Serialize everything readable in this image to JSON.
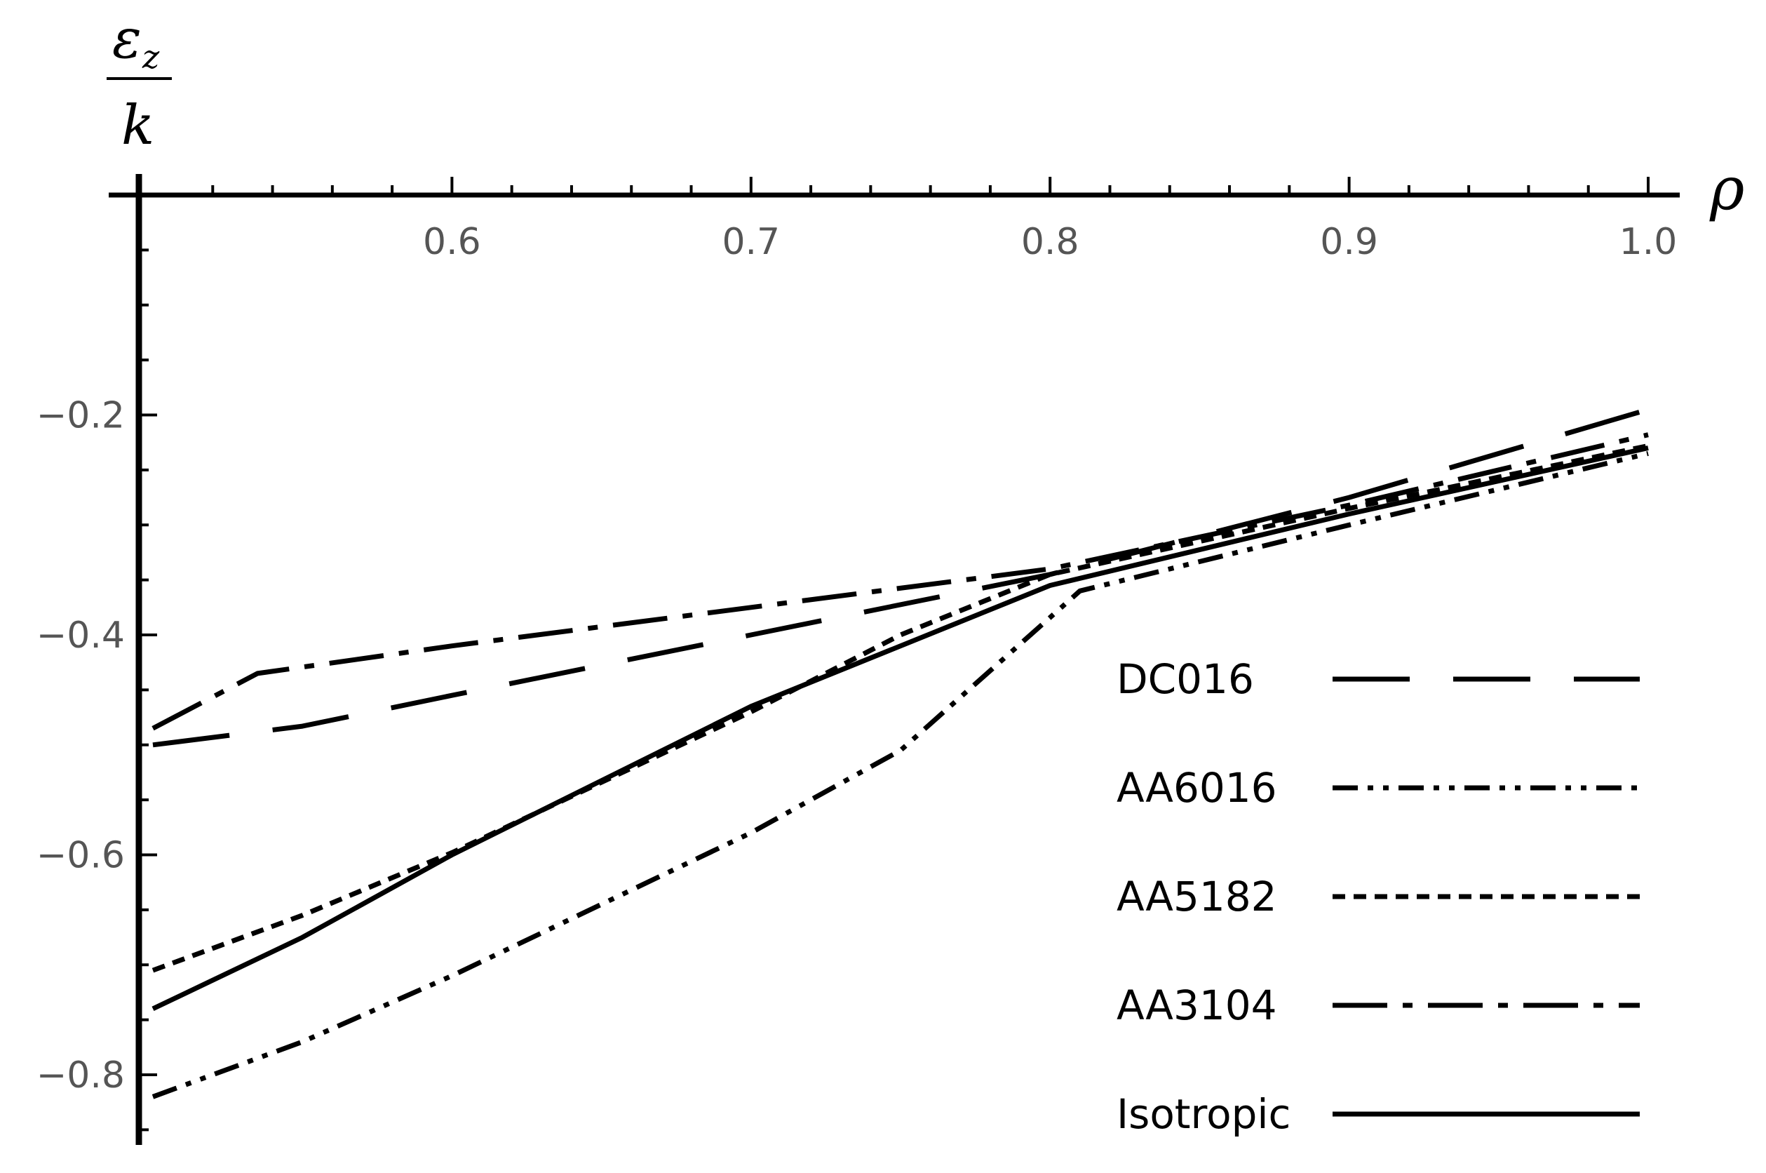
{
  "chart_data": {
    "type": "line",
    "title": "",
    "xlabel": "ρ",
    "ylabel_numerator": "ε",
    "ylabel_subscript": "z",
    "ylabel_denominator": "k",
    "xlim": [
      0.5,
      1.0
    ],
    "ylim": [
      -0.85,
      0.0
    ],
    "x_ticks": [
      0.6,
      0.7,
      0.8,
      0.9,
      1.0
    ],
    "x_tick_labels": [
      "0.6",
      "0.7",
      "0.8",
      "0.9",
      "1.0"
    ],
    "y_ticks": [
      -0.2,
      -0.4,
      -0.6,
      -0.8
    ],
    "y_tick_labels": [
      "−0.2",
      "−0.4",
      "−0.6",
      "−0.8"
    ],
    "legend_position": "bottom-right",
    "series": [
      {
        "name": "DC016",
        "dash": "long",
        "x": [
          0.5,
          0.55,
          0.6,
          0.7,
          0.8,
          0.9,
          1.0
        ],
        "y": [
          -0.5,
          -0.483,
          -0.455,
          -0.4,
          -0.345,
          -0.275,
          -0.195
        ]
      },
      {
        "name": "AA6016",
        "dash": "dash-dot-dot",
        "x": [
          0.5,
          0.55,
          0.6,
          0.7,
          0.75,
          0.81,
          0.9,
          1.0
        ],
        "y": [
          -0.82,
          -0.77,
          -0.71,
          -0.58,
          -0.505,
          -0.36,
          -0.3,
          -0.235
        ]
      },
      {
        "name": "AA5182",
        "dash": "short",
        "x": [
          0.5,
          0.55,
          0.6,
          0.7,
          0.75,
          0.8,
          0.9,
          1.0
        ],
        "y": [
          -0.705,
          -0.655,
          -0.598,
          -0.47,
          -0.4,
          -0.345,
          -0.285,
          -0.228
        ]
      },
      {
        "name": "AA3104",
        "dash": "long-dash-dot",
        "x": [
          0.5,
          0.535,
          0.6,
          0.7,
          0.8,
          0.9,
          1.0
        ],
        "y": [
          -0.485,
          -0.435,
          -0.41,
          -0.375,
          -0.34,
          -0.282,
          -0.218
        ]
      },
      {
        "name": "Isotropic",
        "dash": "solid",
        "x": [
          0.5,
          0.55,
          0.6,
          0.7,
          0.8,
          0.9,
          1.0
        ],
        "y": [
          -0.74,
          -0.675,
          -0.6,
          -0.465,
          -0.355,
          -0.29,
          -0.23
        ]
      }
    ]
  }
}
